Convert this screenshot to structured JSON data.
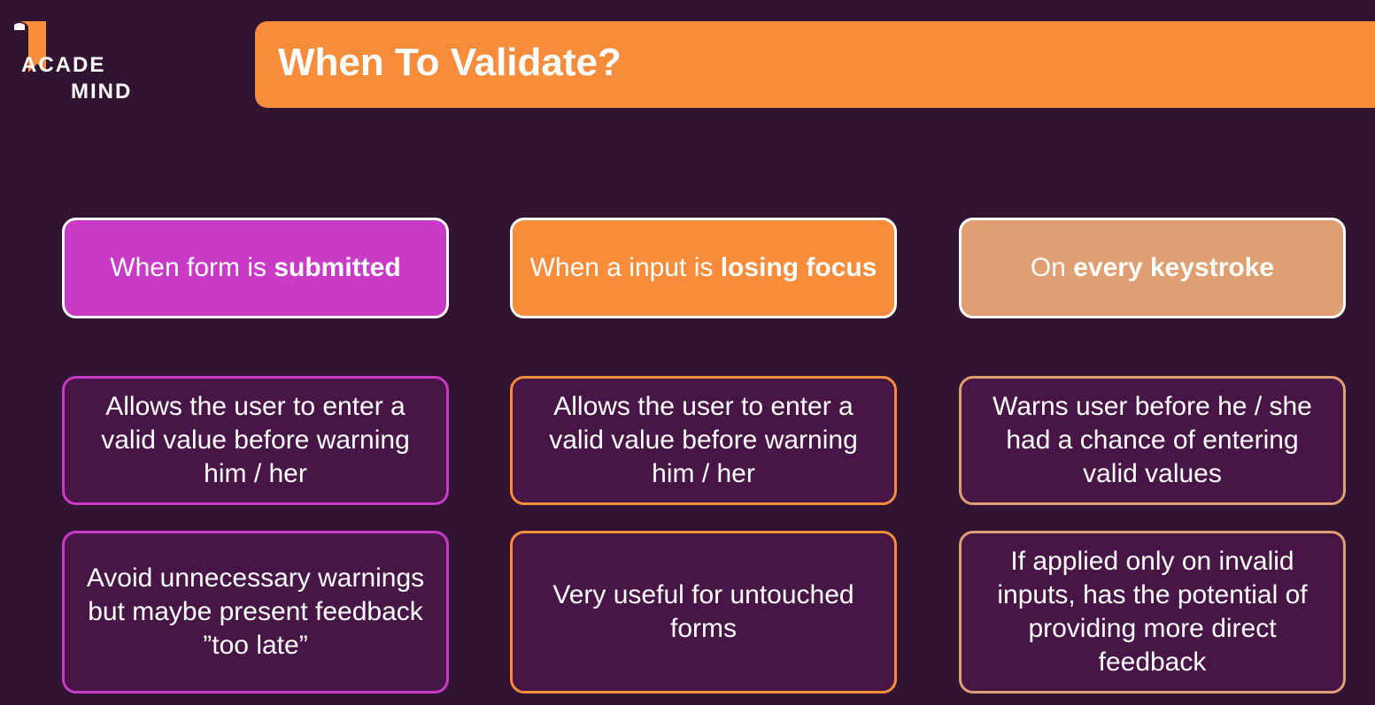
{
  "brand": {
    "line1": "ACADE",
    "line2": "MIND",
    "mark_color": "#f78c3b",
    "logo_icon": "bookmark-icon"
  },
  "title": "When To Validate?",
  "colors": {
    "background": "#311432",
    "title_bar": "#f78c3b",
    "purple": "#c93ac7",
    "orange": "#f78c3b",
    "tan": "#df9f72",
    "card_fill": "#471647"
  },
  "columns": [
    {
      "heading_prefix": "When form is ",
      "heading_bold": "submitted",
      "point1": "Allows the user to enter a valid value before warning him / her",
      "point2": "Avoid unnecessary warnings but maybe present feedback ”too late”"
    },
    {
      "heading_prefix": "When a input is ",
      "heading_bold": "losing focus",
      "point1": "Allows the user to enter a valid value before warning him / her",
      "point2": "Very useful for untouched forms"
    },
    {
      "heading_prefix": "On ",
      "heading_bold": "every keystroke",
      "point1": "Warns user before he / she had a chance of entering valid values",
      "point2": "If applied only on invalid inputs, has the potential of providing more direct feedback"
    }
  ]
}
